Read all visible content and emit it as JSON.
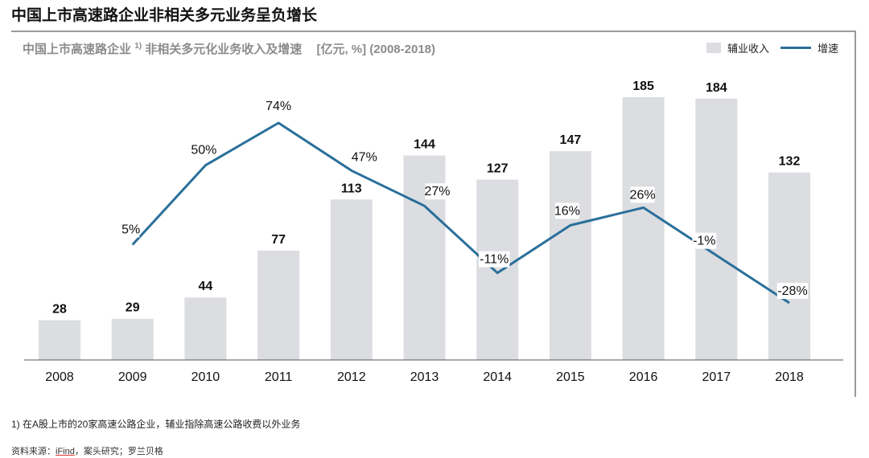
{
  "page_title": "中国上市高速路企业非相关多元业务呈负增长",
  "chart_data": {
    "type": "bar",
    "title_main": "中国上市高速路企业",
    "title_sup": "1)",
    "title_rest": "非相关多元化业务收入及增速",
    "title_units": "[亿元, %] (2008-2018)",
    "categories": [
      "2008",
      "2009",
      "2010",
      "2011",
      "2012",
      "2013",
      "2014",
      "2015",
      "2016",
      "2017",
      "2018"
    ],
    "series": [
      {
        "name": "辅业收入",
        "kind": "bar",
        "color": "#dcdde1",
        "values": [
          28,
          29,
          44,
          77,
          113,
          144,
          127,
          147,
          185,
          184,
          132
        ]
      },
      {
        "name": "增速",
        "kind": "line",
        "color": "#2a6f9a",
        "values": [
          null,
          5,
          50,
          74,
          47,
          27,
          -11,
          16,
          26,
          -1,
          -28
        ],
        "labels": [
          "",
          "5%",
          "50%",
          "74%",
          "47%",
          "27%",
          "-11%",
          "16%",
          "26%",
          "-1%",
          "-28%"
        ]
      }
    ],
    "bar_ylim": [
      0,
      185
    ],
    "line_ylim": [
      -28,
      74
    ],
    "legend_position": "top-right"
  },
  "footnote": "1) 在A股上市的20家高速公路企业，辅业指除高速公路收费以外业务",
  "source_prefix": "资料来源：",
  "source_ifind": "iFind",
  "source_rest": "，案头研究；罗兰贝格"
}
